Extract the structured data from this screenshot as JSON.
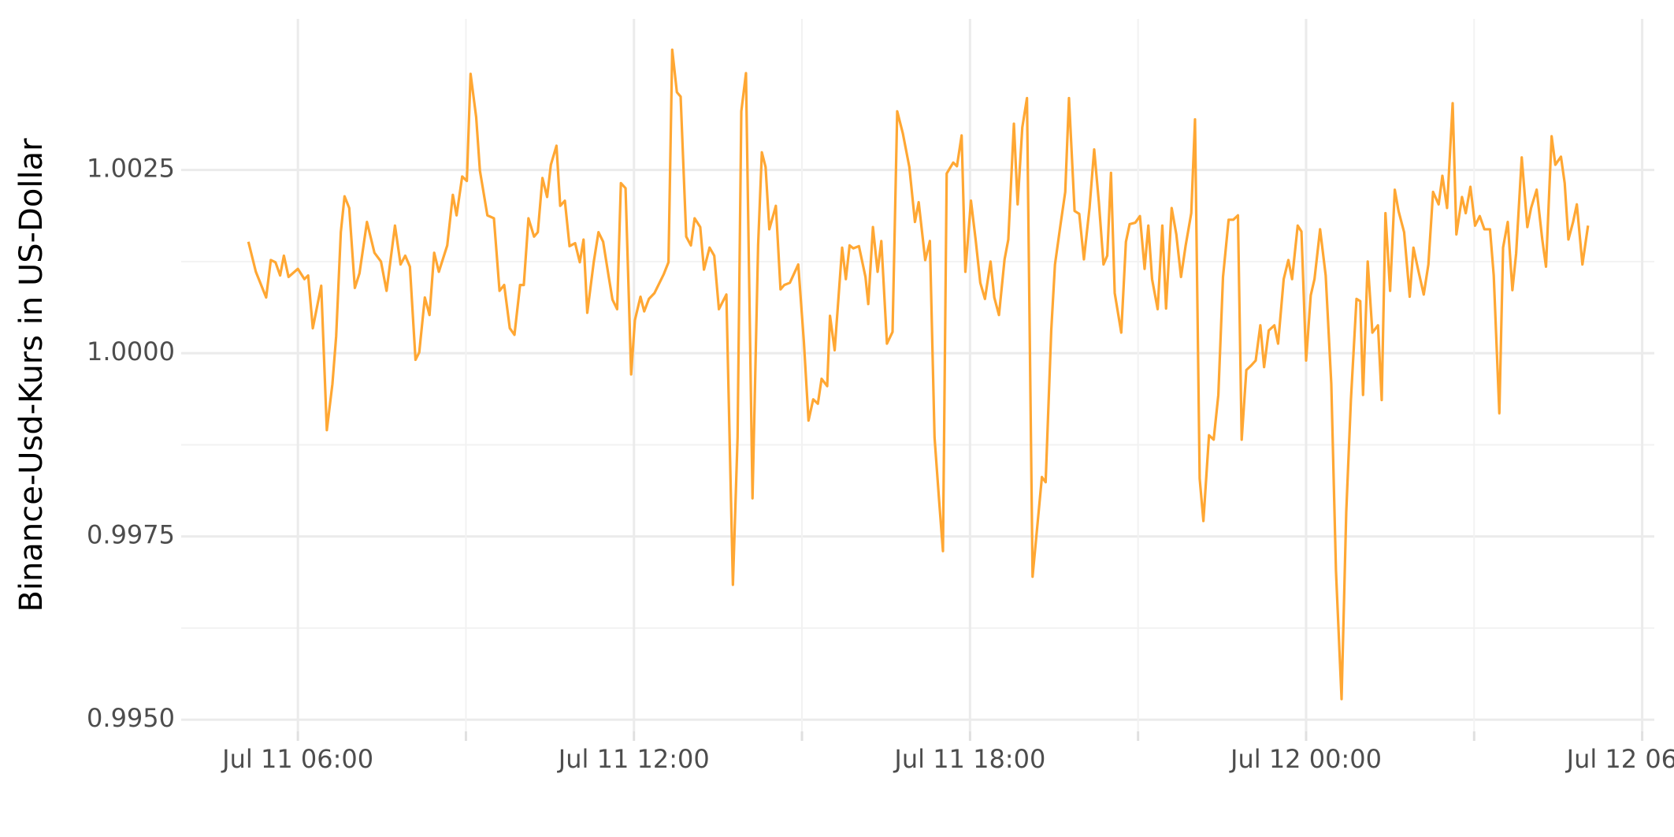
{
  "chart_data": {
    "type": "line",
    "ylabel": "Binance-Usd-Kurs in US-Dollar",
    "color": "#ffa733",
    "grid": true,
    "xlim": [
      "Jul 11 03:55",
      "Jul 12 06:13"
    ],
    "xticks": [
      "Jul 11 06:00",
      "Jul 11 12:00",
      "Jul 11 18:00",
      "Jul 12 00:00",
      "Jul 12 06:00"
    ],
    "ylim": [
      0.99484,
      1.00456
    ],
    "yticks": [
      {
        "value": 0.995,
        "label": "0.9950"
      },
      0.9975,
      {
        "value": 1,
        "label": "1.0000"
      },
      1.0025
    ],
    "x": [
      "Jul 11 05:07",
      "Jul 11 05:15",
      "Jul 11 05:26",
      "Jul 11 05:31",
      "Jul 11 05:36",
      "Jul 11 05:41",
      "Jul 11 05:45",
      "Jul 11 05:50",
      "Jul 11 06:00",
      "Jul 11 06:07",
      "Jul 11 06:11",
      "Jul 11 06:16",
      "Jul 11 06:25",
      "Jul 11 06:31",
      "Jul 11 06:37",
      "Jul 11 06:41",
      "Jul 11 06:46",
      "Jul 11 06:50",
      "Jul 11 06:55",
      "Jul 11 07:01",
      "Jul 11 07:06",
      "Jul 11 07:14",
      "Jul 11 07:22",
      "Jul 11 07:29",
      "Jul 11 07:35",
      "Jul 11 07:44",
      "Jul 11 07:50",
      "Jul 11 07:55",
      "Jul 11 08:00",
      "Jul 11 08:06",
      "Jul 11 08:10",
      "Jul 11 08:16",
      "Jul 11 08:21",
      "Jul 11 08:26",
      "Jul 11 08:31",
      "Jul 11 08:40",
      "Jul 11 08:46",
      "Jul 11 08:50",
      "Jul 11 08:56",
      "Jul 11 09:01",
      "Jul 11 09:05",
      "Jul 11 09:11",
      "Jul 11 09:15",
      "Jul 11 09:23",
      "Jul 11 09:30",
      "Jul 11 09:36",
      "Jul 11 09:41",
      "Jul 11 09:47",
      "Jul 11 09:52",
      "Jul 11 09:58",
      "Jul 11 10:02",
      "Jul 11 10:07",
      "Jul 11 10:13",
      "Jul 11 10:17",
      "Jul 11 10:22",
      "Jul 11 10:27",
      "Jul 11 10:31",
      "Jul 11 10:37",
      "Jul 11 10:41",
      "Jul 11 10:46",
      "Jul 11 10:51",
      "Jul 11 10:57",
      "Jul 11 11:02",
      "Jul 11 11:06",
      "Jul 11 11:10",
      "Jul 11 11:17",
      "Jul 11 11:22",
      "Jul 11 11:27",
      "Jul 11 11:33",
      "Jul 11 11:37",
      "Jul 11 11:42",
      "Jul 11 11:46",
      "Jul 11 11:51",
      "Jul 11 11:57",
      "Jul 11 12:01",
      "Jul 11 12:07",
      "Jul 11 12:11",
      "Jul 11 12:16",
      "Jul 11 12:22",
      "Jul 11 12:32",
      "Jul 11 12:37",
      "Jul 11 12:41",
      "Jul 11 12:46",
      "Jul 11 12:50",
      "Jul 11 12:56",
      "Jul 11 13:01",
      "Jul 11 13:05",
      "Jul 11 13:11",
      "Jul 11 13:15",
      "Jul 11 13:21",
      "Jul 11 13:26",
      "Jul 11 13:31",
      "Jul 11 13:39",
      "Jul 11 13:46",
      "Jul 11 13:51",
      "Jul 11 13:55",
      "Jul 11 14:00",
      "Jul 11 14:07",
      "Jul 11 14:13",
      "Jul 11 14:17",
      "Jul 11 14:21",
      "Jul 11 14:25",
      "Jul 11 14:32",
      "Jul 11 14:37",
      "Jul 11 14:41",
      "Jul 11 14:47",
      "Jul 11 14:56",
      "Jul 11 15:02",
      "Jul 11 15:07",
      "Jul 11 15:12",
      "Jul 11 15:17",
      "Jul 11 15:21",
      "Jul 11 15:27",
      "Jul 11 15:30",
      "Jul 11 15:35",
      "Jul 11 15:43",
      "Jul 11 15:47",
      "Jul 11 15:51",
      "Jul 11 15:55",
      "Jul 11 16:01",
      "Jul 11 16:08",
      "Jul 11 16:11",
      "Jul 11 16:16",
      "Jul 11 16:21",
      "Jul 11 16:25",
      "Jul 11 16:31",
      "Jul 11 16:37",
      "Jul 11 16:42",
      "Jul 11 16:48",
      "Jul 11 16:55",
      "Jul 11 17:01",
      "Jul 11 17:05",
      "Jul 11 17:12",
      "Jul 11 17:17",
      "Jul 11 17:22",
      "Jul 11 17:27",
      "Jul 11 17:31",
      "Jul 11 17:35",
      "Jul 11 17:42",
      "Jul 11 17:46",
      "Jul 11 17:51",
      "Jul 11 17:55",
      "Jul 11 18:01",
      "Jul 11 18:06",
      "Jul 11 18:11",
      "Jul 11 18:16",
      "Jul 11 18:22",
      "Jul 11 18:26",
      "Jul 11 18:31",
      "Jul 11 18:37",
      "Jul 11 18:41",
      "Jul 11 18:47",
      "Jul 11 18:51",
      "Jul 11 18:56",
      "Jul 11 19:01",
      "Jul 11 19:07",
      "Jul 11 19:17",
      "Jul 11 19:21",
      "Jul 11 19:27",
      "Jul 11 19:31",
      "Jul 11 19:37",
      "Jul 11 19:42",
      "Jul 11 19:46",
      "Jul 11 19:52",
      "Jul 11 19:57",
      "Jul 11 20:02",
      "Jul 11 20:08",
      "Jul 11 20:13",
      "Jul 11 20:18",
      "Jul 11 20:23",
      "Jul 11 20:27",
      "Jul 11 20:31",
      "Jul 11 20:35",
      "Jul 11 20:42",
      "Jul 11 20:47",
      "Jul 11 20:51",
      "Jul 11 20:57",
      "Jul 11 21:02",
      "Jul 11 21:07",
      "Jul 11 21:11",
      "Jul 11 21:15",
      "Jul 11 21:21",
      "Jul 11 21:26",
      "Jul 11 21:30",
      "Jul 11 21:36",
      "Jul 11 21:41",
      "Jul 11 21:46",
      "Jul 11 21:51",
      "Jul 11 21:57",
      "Jul 11 22:01",
      "Jul 11 22:06",
      "Jul 11 22:10",
      "Jul 11 22:16",
      "Jul 11 22:21",
      "Jul 11 22:26",
      "Jul 11 22:31",
      "Jul 11 22:37",
      "Jul 11 22:42",
      "Jul 11 22:47",
      "Jul 11 22:51",
      "Jul 11 22:56",
      "Jul 11 23:01",
      "Jul 11 23:06",
      "Jul 11 23:11",
      "Jul 11 23:15",
      "Jul 11 23:20",
      "Jul 11 23:26",
      "Jul 11 23:30",
      "Jul 11 23:36",
      "Jul 11 23:41",
      "Jul 11 23:45",
      "Jul 11 23:51",
      "Jul 11 23:55",
      "Jul 12 00:00",
      "Jul 12 00:05",
      "Jul 12 00:09",
      "Jul 12 00:15",
      "Jul 12 00:21",
      "Jul 12 00:27",
      "Jul 12 00:32",
      "Jul 12 00:38",
      "Jul 12 00:43",
      "Jul 12 00:48",
      "Jul 12 00:54",
      "Jul 12 00:58",
      "Jul 12 01:01",
      "Jul 12 01:06",
      "Jul 12 01:11",
      "Jul 12 01:17",
      "Jul 12 01:21",
      "Jul 12 01:25",
      "Jul 12 01:30",
      "Jul 12 01:35",
      "Jul 12 01:39",
      "Jul 12 01:45",
      "Jul 12 01:51",
      "Jul 12 01:55",
      "Jul 12 02:00",
      "Jul 12 02:06",
      "Jul 12 02:11",
      "Jul 12 02:16",
      "Jul 12 02:22",
      "Jul 12 02:26",
      "Jul 12 02:31",
      "Jul 12 02:37",
      "Jul 12 02:41",
      "Jul 12 02:47",
      "Jul 12 02:51",
      "Jul 12 02:56",
      "Jul 12 03:01",
      "Jul 12 03:06",
      "Jul 12 03:11",
      "Jul 12 03:17",
      "Jul 12 03:21",
      "Jul 12 03:27",
      "Jul 12 03:31",
      "Jul 12 03:36",
      "Jul 12 03:41",
      "Jul 12 03:45",
      "Jul 12 03:51",
      "Jul 12 03:57",
      "Jul 12 04:01",
      "Jul 12 04:07",
      "Jul 12 04:13",
      "Jul 12 04:17",
      "Jul 12 04:23",
      "Jul 12 04:27",
      "Jul 12 04:33",
      "Jul 12 04:37",
      "Jul 12 04:41",
      "Jul 12 04:46",
      "Jul 12 04:50",
      "Jul 12 04:56",
      "Jul 12 05:02"
    ],
    "values": [
      1.00152,
      1.00111,
      1.00076,
      1.00127,
      1.00124,
      1.00106,
      1.00133,
      1.00104,
      1.00115,
      1.00101,
      1.00106,
      1.00034,
      1.00092,
      0.99895,
      0.99958,
      1.00023,
      1.00165,
      1.00214,
      1.00198,
      1.00089,
      1.00109,
      1.00179,
      1.00137,
      1.00125,
      1.00085,
      1.00174,
      1.00121,
      1.00133,
      1.00118,
      0.99991,
      1.00001,
      1.00076,
      1.00052,
      1.00137,
      1.00111,
      1.00147,
      1.00216,
      1.00188,
      1.00241,
      1.00235,
      1.00381,
      1.00322,
      1.00249,
      1.00188,
      1.00184,
      1.00085,
      1.00093,
      1.00034,
      1.00025,
      1.00093,
      1.00093,
      1.00184,
      1.00159,
      1.00165,
      1.00239,
      1.00213,
      1.00257,
      1.00283,
      1.00201,
      1.00208,
      1.00146,
      1.0015,
      1.00124,
      1.00155,
      1.00055,
      1.00125,
      1.00165,
      1.00152,
      1.00104,
      1.00073,
      1.0006,
      1.00232,
      1.00225,
      0.99971,
      1.00045,
      1.00077,
      1.00057,
      1.00074,
      1.00082,
      1.00108,
      1.00124,
      1.00414,
      1.00356,
      1.0035,
      1.00159,
      1.00147,
      1.00184,
      1.00172,
      1.00114,
      1.00144,
      1.00133,
      1.0006,
      1.0008,
      0.99684,
      0.99885,
      1.0033,
      1.00382,
      0.99802,
      1.00147,
      1.00274,
      1.00254,
      1.00169,
      1.00201,
      1.00087,
      1.00093,
      1.00096,
      1.00121,
      1.00016,
      0.99908,
      0.99937,
      0.99931,
      0.99965,
      0.99955,
      1.00051,
      1.00004,
      1.00144,
      1.00101,
      1.00147,
      1.00143,
      1.00146,
      1.00104,
      1.00067,
      1.00172,
      1.00111,
      1.00153,
      1.00013,
      1.00029,
      1.0033,
      1.003,
      1.00254,
      1.00179,
      1.00206,
      1.00127,
      1.00153,
      0.99885,
      0.99797,
      0.9973,
      1.00245,
      1.0026,
      1.00255,
      1.00297,
      1.00111,
      1.00208,
      1.00155,
      1.00096,
      1.00074,
      1.00125,
      1.00076,
      1.00052,
      1.00128,
      1.00155,
      1.00313,
      1.00203,
      1.00308,
      1.00348,
      0.99695,
      0.99831,
      0.99824,
      1.00031,
      1.00121,
      1.00176,
      1.0022,
      1.00348,
      1.00194,
      1.0019,
      1.00128,
      1.00198,
      1.00278,
      1.00206,
      1.00121,
      1.00133,
      1.00246,
      1.00082,
      1.00028,
      1.00152,
      1.00176,
      1.00178,
      1.00187,
      1.00115,
      1.00174,
      1.00101,
      1.0006,
      1.00174,
      1.00061,
      1.00198,
      1.00162,
      1.00104,
      1.00147,
      1.00191,
      1.00319,
      0.99829,
      0.99771,
      0.99888,
      0.99882,
      0.99943,
      1.00104,
      1.00182,
      1.00182,
      1.00188,
      0.99882,
      0.99977,
      0.99983,
      0.9999,
      1.00038,
      0.99981,
      1.00031,
      1.00038,
      1.00013,
      1.00101,
      1.00127,
      1.00101,
      1.00174,
      1.00166,
      0.9999,
      1.00079,
      1.00101,
      1.00169,
      1.00106,
      0.99958,
      0.99703,
      0.99528,
      0.99783,
      0.99936,
      1.00074,
      1.00071,
      0.99943,
      1.00125,
      1.00028,
      1.00038,
      0.99936,
      1.00191,
      1.00085,
      1.00223,
      1.00194,
      1.00165,
      1.00077,
      1.00144,
      1.00114,
      1.0008,
      1.00121,
      1.0022,
      1.00203,
      1.00242,
      1.00198,
      1.00341,
      1.00162,
      1.00213,
      1.00191,
      1.00227,
      1.00174,
      1.00187,
      1.00169,
      1.00169,
      1.00106,
      0.99918,
      1.00144,
      1.00179,
      1.00086,
      1.00136,
      1.00267,
      1.00172,
      1.00198,
      1.00223,
      1.00155,
      1.00118,
      1.00296,
      1.00257,
      1.00268,
      1.00232,
      1.00155,
      1.00179,
      1.00203,
      1.00121,
      1.00174
    ]
  }
}
